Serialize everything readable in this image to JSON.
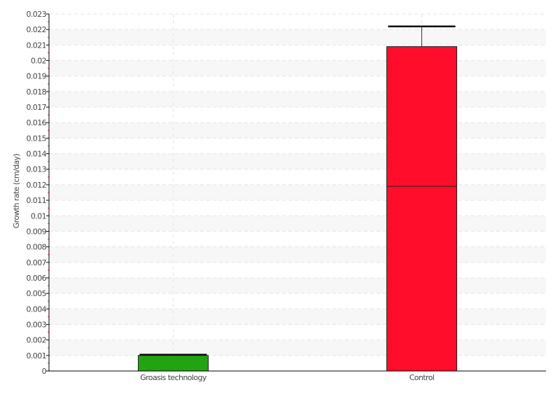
{
  "chart_data": {
    "type": "box",
    "title": "",
    "xlabel": "",
    "ylabel": "Growth rate (cm/day)",
    "ylim": [
      0,
      0.023
    ],
    "ytick_step": 0.001,
    "yticks": [
      "0",
      "0.001",
      "0.002",
      "0.003",
      "0.004",
      "0.005",
      "0.006",
      "0.007",
      "0.008",
      "0.009",
      "0.01",
      "0.011",
      "0.012",
      "0.013",
      "0.014",
      "0.015",
      "0.016",
      "0.017",
      "0.018",
      "0.019",
      "0.02",
      "0.021",
      "0.022",
      "0.023"
    ],
    "grid": true,
    "categories": [
      "Groasis technology",
      "Control"
    ],
    "boxes": [
      {
        "category": "Groasis technology",
        "min": 0,
        "q1": 0,
        "median": 0,
        "q3": 0.001,
        "max": 0.00105,
        "color": "#22a311"
      },
      {
        "category": "Control",
        "min": 0,
        "q1": 0,
        "median": 0.0119,
        "q3": 0.0209,
        "max": 0.0222,
        "color": "#ff0d2a"
      }
    ]
  }
}
